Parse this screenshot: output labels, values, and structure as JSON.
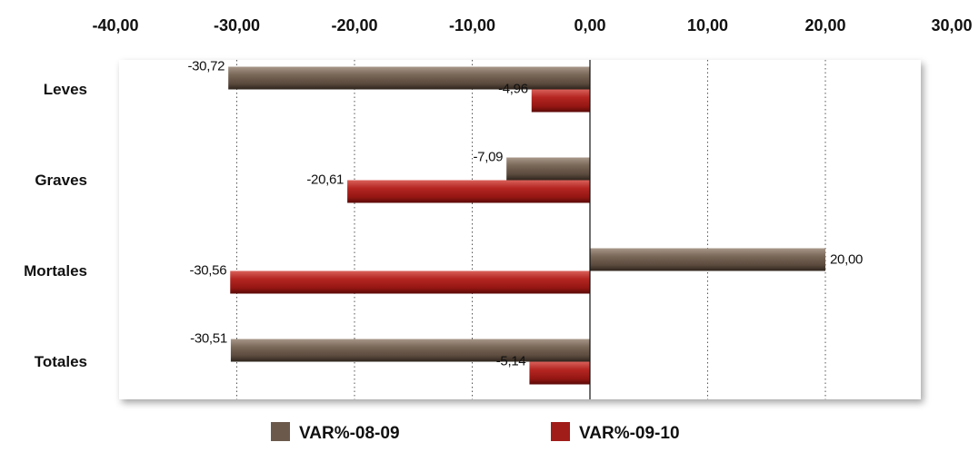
{
  "chart_data": {
    "type": "bar",
    "orientation": "horizontal",
    "categories": [
      "Leves",
      "Graves",
      "Mortales",
      "Totales"
    ],
    "series": [
      {
        "name": "VAR%-08-09",
        "values": [
          -30.72,
          -7.09,
          20.0,
          -30.51
        ],
        "color": "#6b5a4c"
      },
      {
        "name": "VAR%-09-10",
        "values": [
          -4.96,
          -20.61,
          -30.56,
          -5.14
        ],
        "color": "#a11d1a"
      }
    ],
    "data_labels": [
      [
        "-30,72",
        "-7,09",
        "20,00",
        "-30,51"
      ],
      [
        "-4,96",
        "-20,61",
        "-30,56",
        "-5,14"
      ]
    ],
    "ticks": [
      -40,
      -30,
      -20,
      -10,
      0,
      10,
      20,
      30
    ],
    "tick_labels": [
      "-40,00",
      "-30,00",
      "-20,00",
      "-10,00",
      "0,00",
      "10,00",
      "20,00",
      "30,00"
    ],
    "xlim": [
      -40,
      30
    ],
    "axis_position": "top",
    "grid": "vertical-dotted",
    "legend_position": "bottom"
  }
}
